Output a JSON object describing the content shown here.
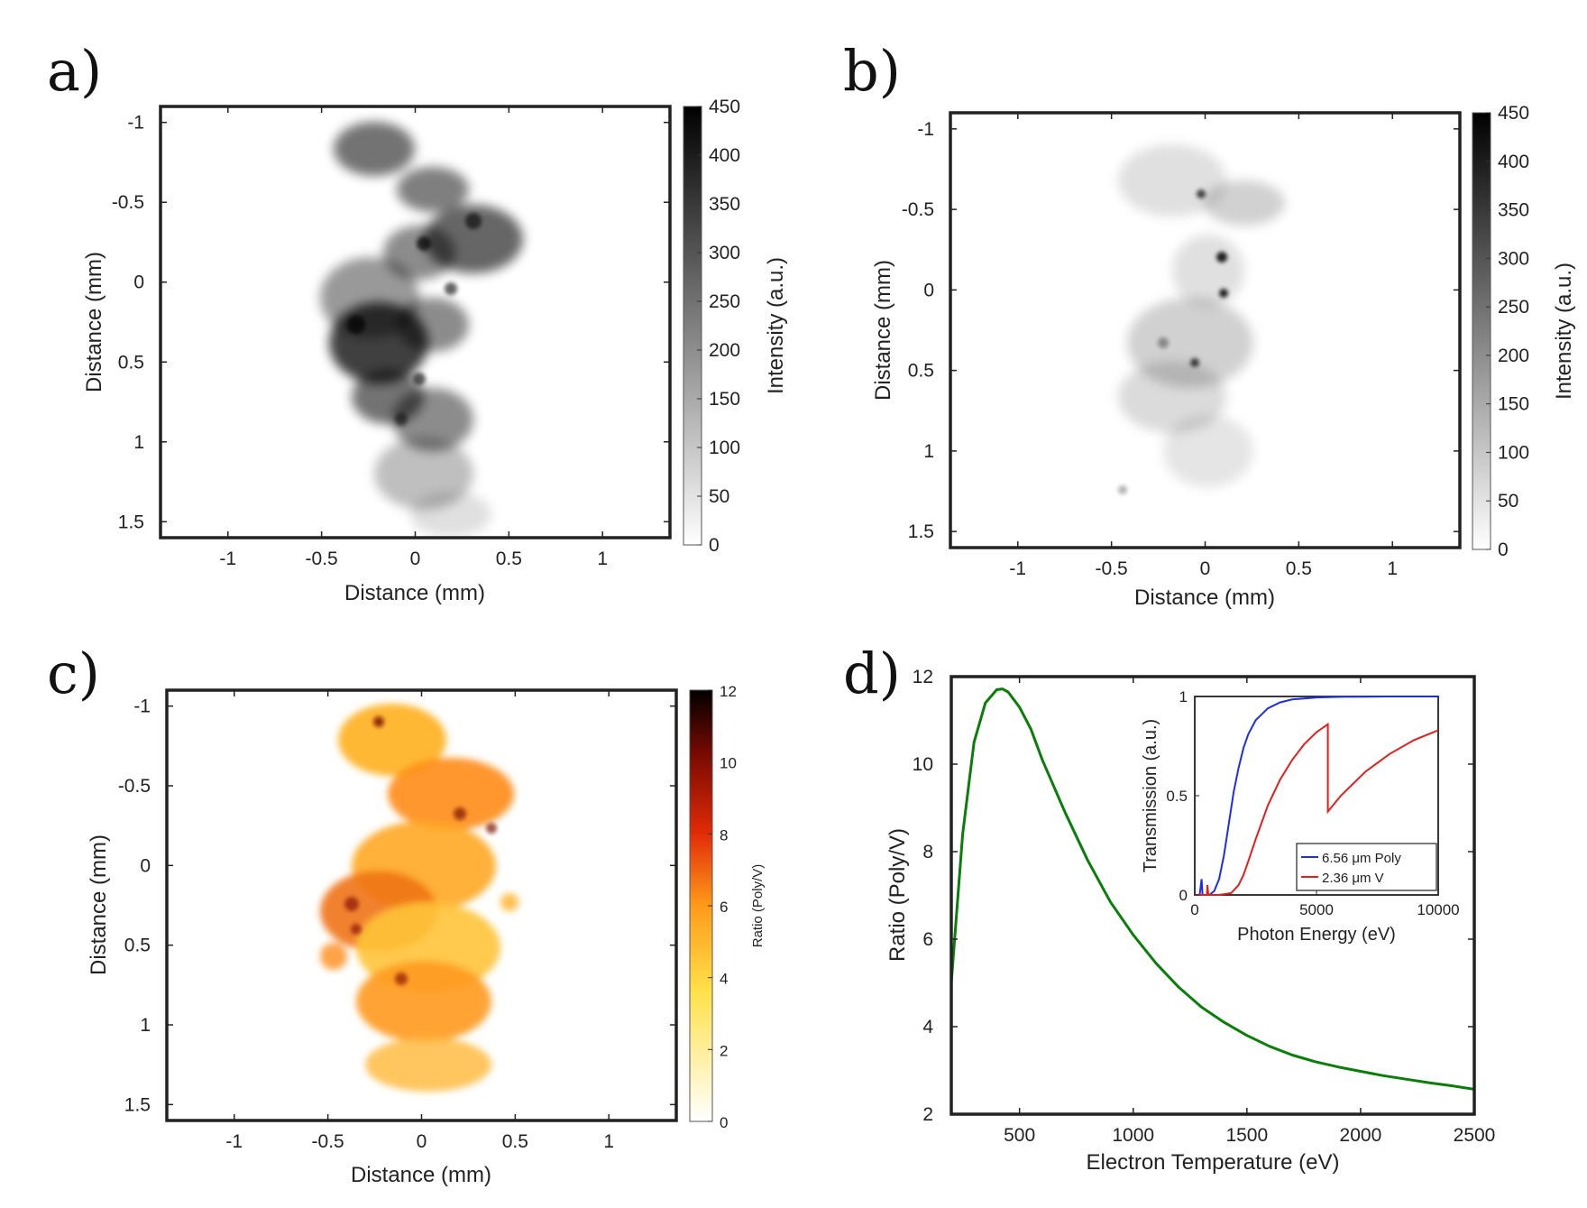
{
  "panels": [
    {
      "label": "a)",
      "chart_data": {
        "type": "heatmap",
        "colormap": "gray-inverted",
        "xlabel": "Distance (mm)",
        "ylabel": "Distance (mm)",
        "xlim": [
          -1.36,
          1.36
        ],
        "ylim": [
          -1.1,
          1.6
        ],
        "xticks": [
          -1,
          -0.5,
          0,
          0.5,
          1
        ],
        "yticks": [
          -1,
          -0.5,
          0,
          0.5,
          1,
          1.5
        ],
        "colorbar": {
          "label": "Intensity (a.u.)",
          "min": 0,
          "max": 450,
          "ticks": [
            0,
            50,
            100,
            150,
            200,
            250,
            300,
            350,
            400,
            450
          ]
        }
      }
    },
    {
      "label": "b)",
      "chart_data": {
        "type": "heatmap",
        "colormap": "gray-inverted",
        "xlabel": "Distance (mm)",
        "ylabel": "Distance (mm)",
        "xlim": [
          -1.36,
          1.36
        ],
        "ylim": [
          -1.1,
          1.6
        ],
        "xticks": [
          -1,
          -0.5,
          0,
          0.5,
          1
        ],
        "yticks": [
          -1,
          -0.5,
          0,
          0.5,
          1,
          1.5
        ],
        "colorbar": {
          "label": "Intensity (a.u.)",
          "min": 0,
          "max": 450,
          "ticks": [
            0,
            50,
            100,
            150,
            200,
            250,
            300,
            350,
            400,
            450
          ]
        }
      }
    },
    {
      "label": "c)",
      "chart_data": {
        "type": "heatmap",
        "colormap": "hot-inverted",
        "xlabel": "Distance (mm)",
        "ylabel": "Distance (mm)",
        "xlim": [
          -1.36,
          1.36
        ],
        "ylim": [
          -1.1,
          1.6
        ],
        "xticks": [
          -1,
          -0.5,
          0,
          0.5,
          1
        ],
        "yticks": [
          -1,
          -0.5,
          0,
          0.5,
          1,
          1.5
        ],
        "colorbar": {
          "label": "Ratio (Poly/V)",
          "min": 0,
          "max": 12,
          "ticks": [
            0,
            2,
            4,
            6,
            8,
            10,
            12
          ]
        }
      }
    },
    {
      "label": "d)",
      "chart_data": {
        "type": "line",
        "xlabel": "Electron Temperature (eV)",
        "ylabel": "Ratio (Poly/V)",
        "xlim": [
          200,
          2500
        ],
        "ylim": [
          2,
          12
        ],
        "xticks": [
          500,
          1000,
          1500,
          2000,
          2500
        ],
        "yticks": [
          2,
          4,
          6,
          8,
          10,
          12
        ],
        "series": [
          {
            "name": "Ratio",
            "color": "#0a7d0a",
            "x": [
              200,
              250,
              300,
              350,
              400,
              425,
              450,
              500,
              550,
              600,
              700,
              800,
              900,
              1000,
              1100,
              1200,
              1300,
              1400,
              1500,
              1600,
              1700,
              1800,
              1900,
              2000,
              2100,
              2200,
              2300,
              2400,
              2500
            ],
            "y": [
              5.0,
              8.4,
              10.5,
              11.4,
              11.7,
              11.72,
              11.65,
              11.3,
              10.8,
              10.1,
              8.9,
              7.8,
              6.85,
              6.1,
              5.45,
              4.9,
              4.45,
              4.1,
              3.8,
              3.55,
              3.35,
              3.2,
              3.08,
              2.98,
              2.88,
              2.8,
              2.72,
              2.65,
              2.57
            ]
          }
        ],
        "inset": {
          "type": "line",
          "xlabel": "Photon Energy (eV)",
          "ylabel": "Transmission (a.u.)",
          "xlim": [
            0,
            10000
          ],
          "ylim": [
            0,
            1
          ],
          "xticks": [
            0,
            5000,
            10000
          ],
          "yticks": [
            0,
            0.5,
            1
          ],
          "series": [
            {
              "name": "6.56 μm Poly",
              "color": "#1f2fe0",
              "x": [
                0,
                200,
                280,
                320,
                400,
                600,
                800,
                1000,
                1200,
                1400,
                1600,
                1800,
                2000,
                2200,
                2500,
                3000,
                3500,
                4000,
                4500,
                5000,
                6000,
                7000,
                8000,
                9000,
                10000
              ],
              "y": [
                0,
                0,
                0.08,
                0,
                0,
                0,
                0.02,
                0.08,
                0.2,
                0.36,
                0.52,
                0.64,
                0.74,
                0.81,
                0.88,
                0.94,
                0.97,
                0.985,
                0.99,
                0.995,
                0.998,
                0.999,
                1.0,
                1.0,
                1.0
              ]
            },
            {
              "name": "2.36 μm V",
              "color": "#e01f1f",
              "x": [
                0,
                500,
                520,
                560,
                1000,
                1500,
                1800,
                2000,
                2200,
                2500,
                3000,
                3500,
                4000,
                4500,
                5000,
                5465,
                5466,
                6000,
                7000,
                8000,
                9000,
                10000
              ],
              "y": [
                0,
                0,
                0.05,
                0,
                0,
                0.01,
                0.05,
                0.1,
                0.17,
                0.28,
                0.45,
                0.58,
                0.68,
                0.76,
                0.82,
                0.86,
                0.42,
                0.5,
                0.62,
                0.71,
                0.78,
                0.83
              ]
            }
          ],
          "legend": {
            "position": "bottom-right",
            "entries": [
              "6.56 μm Poly",
              "2.36 μm V"
            ]
          }
        }
      }
    }
  ]
}
